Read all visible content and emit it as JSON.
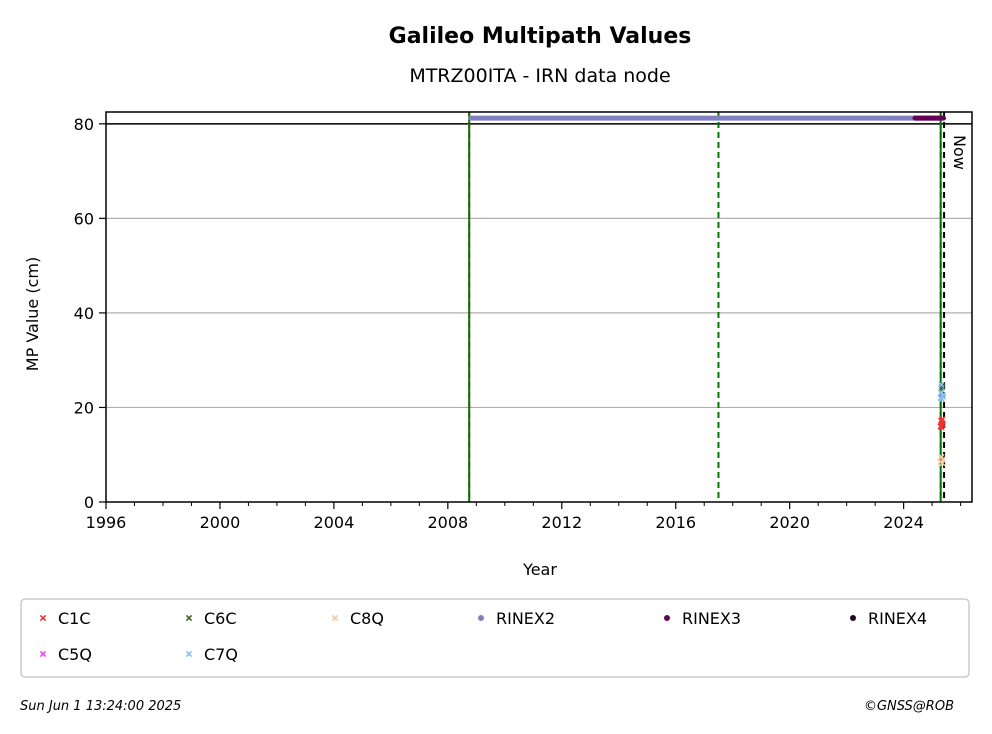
{
  "chart_data": {
    "type": "scatter",
    "title": "Galileo Multipath Values",
    "subtitle": "MTRZ00ITA - IRN data node",
    "xlabel": "Year",
    "ylabel": "MP Value (cm)",
    "xlim": [
      1996,
      2026.4
    ],
    "ylim": [
      0,
      82.5
    ],
    "x_ticks": [
      1996,
      2000,
      2004,
      2008,
      2012,
      2016,
      2020,
      2024
    ],
    "y_ticks": [
      0,
      20,
      40,
      60,
      80
    ],
    "grid": "horizontal",
    "reference_line_y": 80,
    "vertical_lines": [
      {
        "x": 2008.75,
        "style": "dashed",
        "color": "#d62728"
      },
      {
        "x": 2008.75,
        "style": "solid",
        "color": "#007700"
      },
      {
        "x": 2017.5,
        "style": "dashed",
        "color": "#007700"
      },
      {
        "x": 2025.3,
        "style": "dashed",
        "color": "#d62728"
      },
      {
        "x": 2025.3,
        "style": "solid",
        "color": "#007700"
      },
      {
        "x": 2025.42,
        "style": "dashed",
        "color": "#000000"
      }
    ],
    "now_label": "Now",
    "series": [
      {
        "name": "C1C",
        "marker": "x",
        "color": "#ee3333",
        "points": [
          [
            2025.3,
            16.0
          ],
          [
            2025.32,
            17.2
          ],
          [
            2025.34,
            16.6
          ],
          [
            2025.36,
            17.5
          ],
          [
            2025.38,
            16.3
          ],
          [
            2025.33,
            15.8
          ]
        ]
      },
      {
        "name": "C5Q",
        "marker": "x",
        "color": "#ee44ee",
        "points": []
      },
      {
        "name": "C6C",
        "marker": "x",
        "color": "#446622",
        "points": [
          [
            2025.32,
            24.0
          ],
          [
            2025.36,
            24.4
          ]
        ]
      },
      {
        "name": "C7Q",
        "marker": "x",
        "color": "#88bbee",
        "points": [
          [
            2025.3,
            22.0
          ],
          [
            2025.32,
            23.2
          ],
          [
            2025.34,
            21.8
          ],
          [
            2025.36,
            22.6
          ],
          [
            2025.38,
            22.3
          ],
          [
            2025.33,
            24.8
          ]
        ]
      },
      {
        "name": "C8Q",
        "marker": "x",
        "color": "#f5c9a0",
        "points": [
          [
            2025.3,
            8.5
          ],
          [
            2025.33,
            9.5
          ],
          [
            2025.36,
            8.2
          ],
          [
            2025.38,
            9.0
          ]
        ]
      },
      {
        "name": "RINEX2",
        "marker": "dot",
        "color": "#8080c0",
        "segments": [
          [
            2008.8,
            2025.3
          ]
        ],
        "y": 81.2
      },
      {
        "name": "RINEX3",
        "marker": "dot",
        "color": "#660055",
        "segments": [
          [
            2024.4,
            2025.4
          ]
        ],
        "y": 81.2
      },
      {
        "name": "RINEX4",
        "marker": "dot",
        "color": "#220022",
        "points": []
      }
    ],
    "legend": {
      "placement": "below",
      "entries": [
        {
          "label": "C1C",
          "marker": "x",
          "color": "#ee3333"
        },
        {
          "label": "C6C",
          "marker": "x",
          "color": "#446622"
        },
        {
          "label": "C8Q",
          "marker": "x",
          "color": "#f5c9a0"
        },
        {
          "label": "RINEX2",
          "marker": "dot",
          "color": "#8080c0"
        },
        {
          "label": "RINEX3",
          "marker": "dot",
          "color": "#660055"
        },
        {
          "label": "RINEX4",
          "marker": "dot",
          "color": "#220022"
        },
        {
          "label": "C5Q",
          "marker": "x",
          "color": "#ee44ee"
        },
        {
          "label": "C7Q",
          "marker": "x",
          "color": "#88bbee"
        }
      ]
    }
  },
  "footer": {
    "timestamp": "Sun Jun  1 13:24:00 2025",
    "credit": "©GNSS@ROB"
  }
}
